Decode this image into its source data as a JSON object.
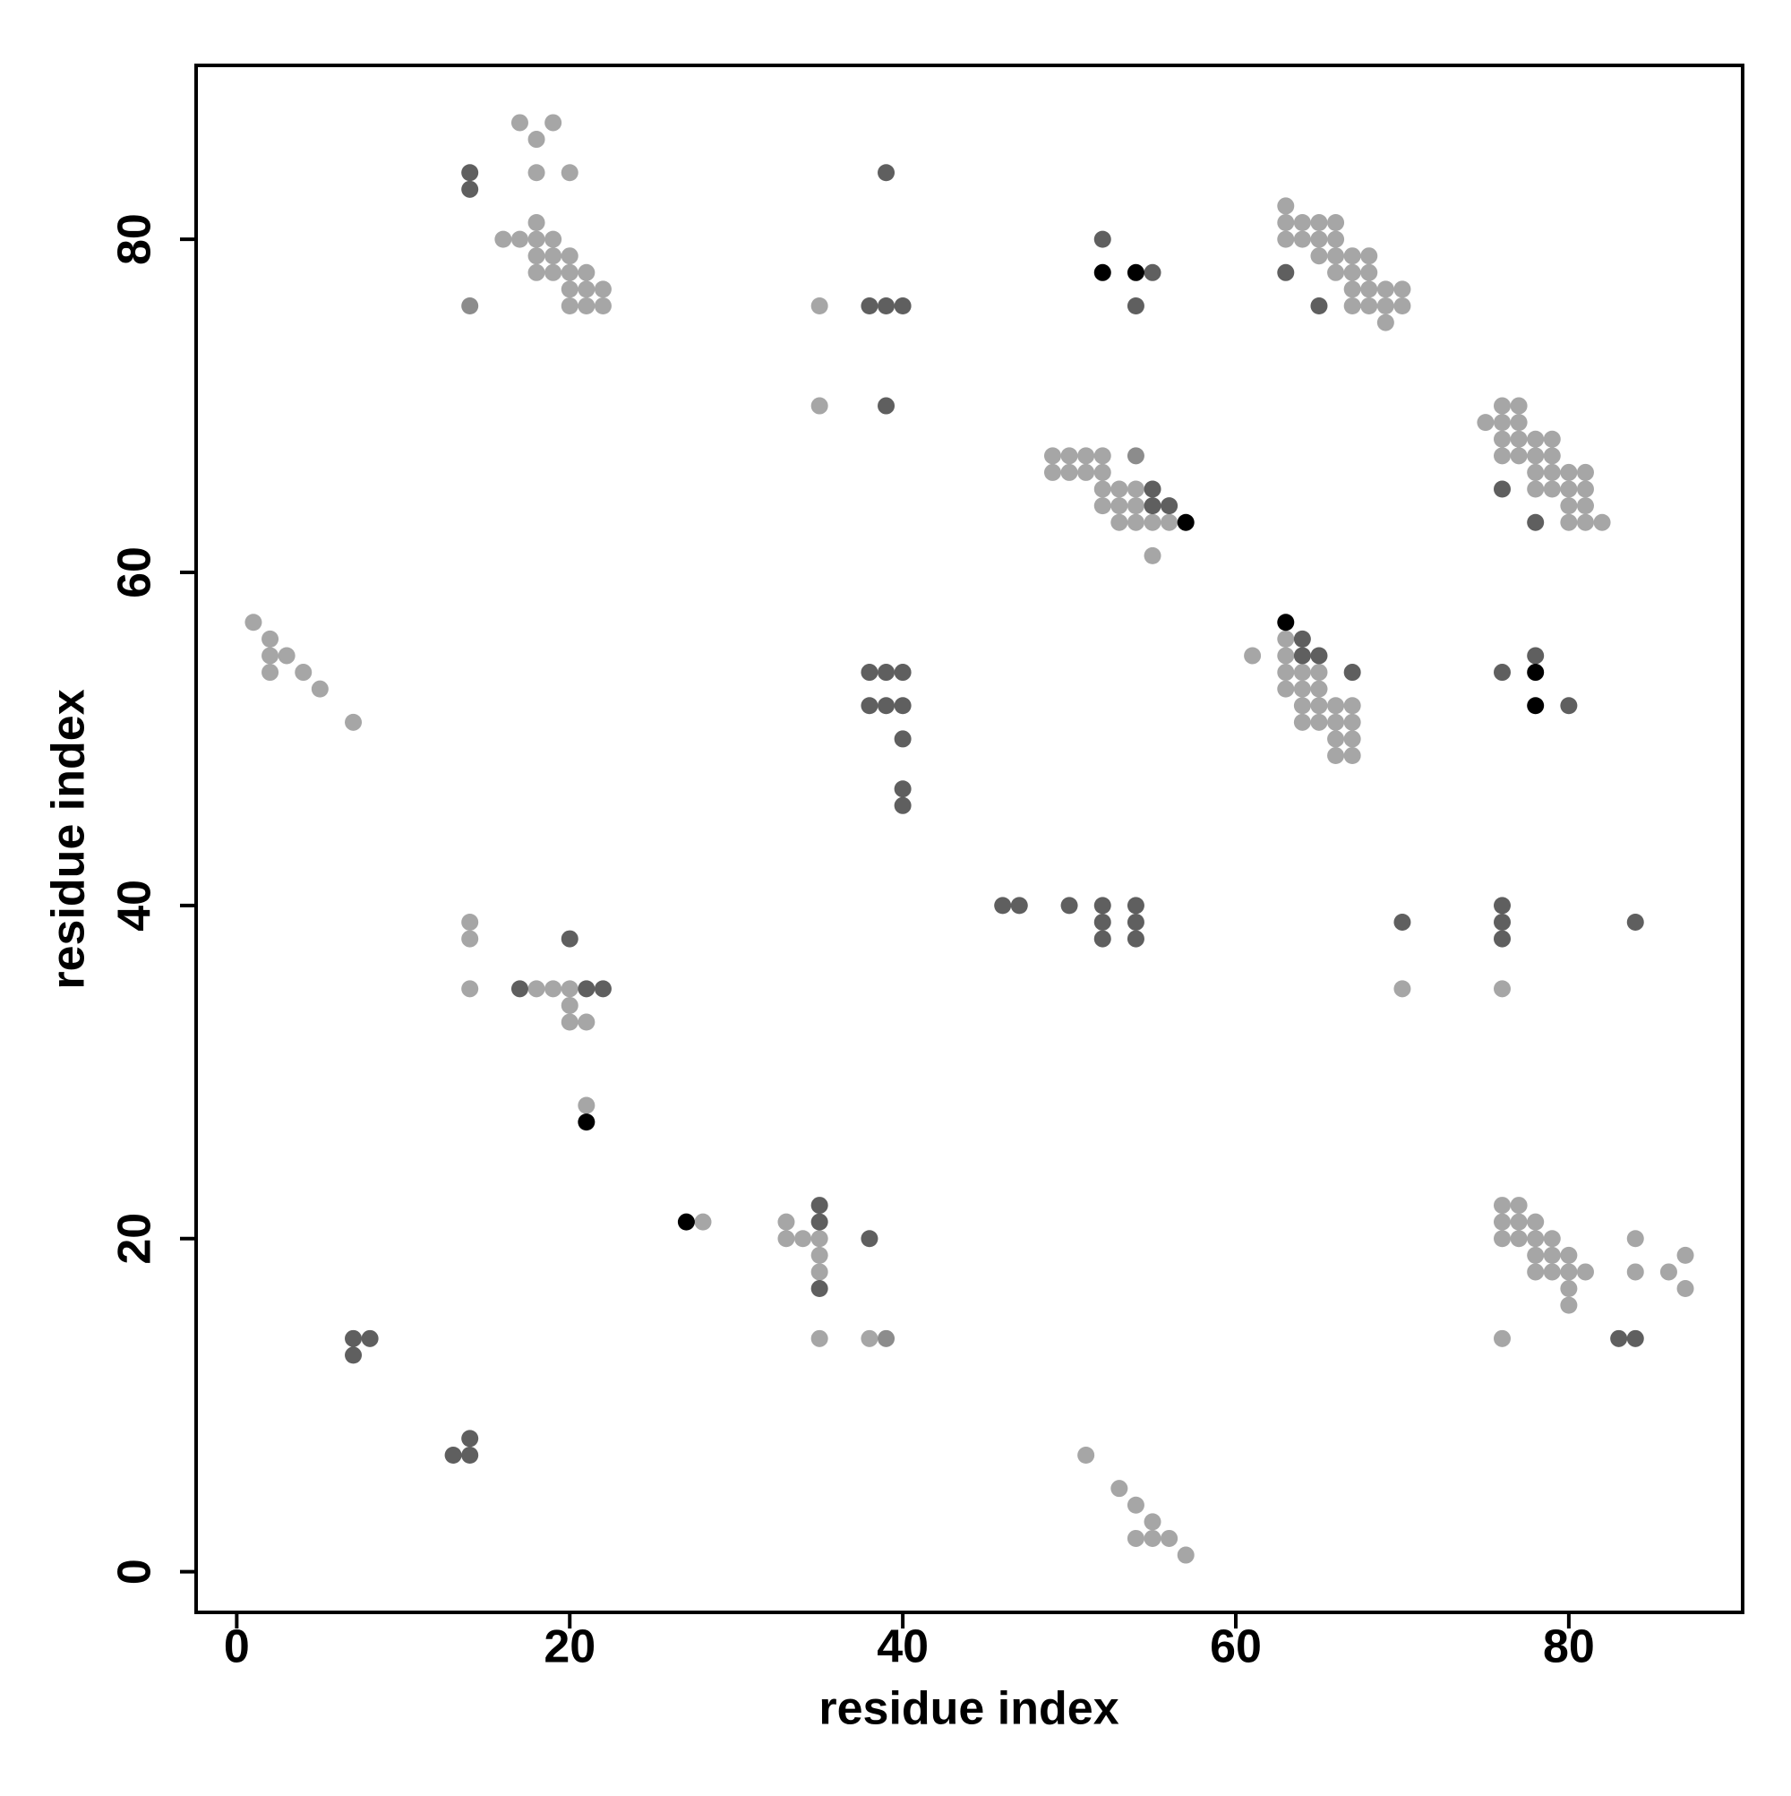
{
  "chart_data": {
    "type": "scatter",
    "x_label": "residue index",
    "y_label": "residue index",
    "xlim": [
      -2.44,
      90.44
    ],
    "ylim": [
      -2.44,
      90.44
    ],
    "xticks": [
      0,
      20,
      40,
      60,
      80
    ],
    "yticks": [
      0,
      20,
      40,
      60,
      80
    ],
    "grid": false,
    "series": [
      {
        "color": "#a6a6a6",
        "x": [
          17,
          19,
          18,
          18,
          20,
          18,
          16,
          17,
          18,
          19,
          18,
          19,
          20,
          18,
          19,
          20,
          21,
          20,
          21,
          22,
          20,
          21,
          22,
          35,
          35,
          63,
          63,
          64,
          65,
          66,
          63,
          64,
          65,
          66,
          65,
          66,
          67,
          68,
          66,
          67,
          68,
          67,
          68,
          69,
          70,
          67,
          68,
          69,
          70,
          69,
          49,
          50,
          51,
          52,
          49,
          50,
          51,
          52,
          52,
          53,
          54,
          52,
          53,
          54,
          53,
          54,
          55,
          56,
          55,
          75,
          76,
          77,
          76,
          77,
          76,
          77,
          78,
          79,
          76,
          77,
          78,
          79,
          78,
          79,
          80,
          81,
          78,
          79,
          80,
          81,
          80,
          81,
          80,
          81,
          82,
          1,
          2,
          2,
          3,
          2,
          4,
          5,
          7,
          61,
          63,
          63,
          63,
          64,
          65,
          63,
          64,
          65,
          64,
          65,
          66,
          67,
          64,
          65,
          66,
          67,
          66,
          67,
          66,
          67,
          70,
          76,
          14,
          14,
          14,
          18,
          19,
          20,
          20,
          20,
          21,
          21,
          28,
          33,
          33,
          34,
          35,
          35,
          35,
          35,
          38,
          51,
          53,
          54,
          55,
          54,
          55,
          56,
          57,
          76,
          77,
          76,
          77,
          78,
          76,
          77,
          78,
          79,
          78,
          79,
          80,
          78,
          79,
          80,
          81,
          80,
          80,
          76,
          84,
          84,
          86,
          87,
          87
        ],
        "y": [
          87,
          87,
          86,
          84,
          84,
          81,
          80,
          80,
          80,
          80,
          79,
          79,
          79,
          78,
          78,
          78,
          78,
          77,
          77,
          77,
          76,
          76,
          76,
          76,
          70,
          82,
          81,
          81,
          81,
          81,
          80,
          80,
          80,
          80,
          79,
          79,
          79,
          79,
          78,
          78,
          78,
          77,
          77,
          77,
          77,
          76,
          76,
          76,
          76,
          75,
          67,
          67,
          67,
          67,
          66,
          66,
          66,
          66,
          65,
          65,
          65,
          64,
          64,
          64,
          63,
          63,
          63,
          63,
          61,
          69,
          70,
          70,
          69,
          69,
          68,
          68,
          68,
          68,
          67,
          67,
          67,
          67,
          66,
          66,
          66,
          66,
          65,
          65,
          65,
          65,
          64,
          64,
          63,
          63,
          63,
          57,
          56,
          55,
          55,
          54,
          54,
          53,
          51,
          55,
          56,
          55,
          54,
          54,
          54,
          53,
          53,
          53,
          52,
          52,
          52,
          52,
          51,
          51,
          51,
          51,
          50,
          50,
          49,
          49,
          35,
          35,
          39,
          38,
          35,
          35,
          35,
          35,
          34,
          33,
          33,
          28,
          21,
          21,
          20,
          20,
          20,
          19,
          18,
          14,
          14,
          7,
          5,
          4,
          3,
          2,
          2,
          2,
          1,
          22,
          22,
          21,
          21,
          21,
          20,
          20,
          20,
          20,
          19,
          19,
          19,
          18,
          18,
          18,
          18,
          17,
          16,
          14,
          20,
          18,
          18,
          19,
          17
        ]
      },
      {
        "color": "#8c8c8c",
        "x": [
          14,
          39,
          54
        ],
        "y": [
          76,
          14,
          67
        ]
      },
      {
        "color": "#5f5f5f",
        "x": [
          14,
          14,
          39,
          38,
          39,
          40,
          39,
          52,
          55,
          54,
          63,
          65,
          55,
          55,
          56,
          76,
          78,
          38,
          39,
          40,
          38,
          39,
          40,
          40,
          40,
          40,
          64,
          64,
          65,
          67,
          76,
          78,
          80,
          46,
          47,
          50,
          52,
          52,
          52,
          54,
          54,
          54,
          70,
          76,
          76,
          76,
          84,
          17,
          21,
          22,
          20,
          35,
          35,
          35,
          38,
          7,
          8,
          7,
          13,
          14,
          14,
          83,
          84
        ],
        "y": [
          84,
          83,
          84,
          76,
          76,
          76,
          70,
          80,
          78,
          76,
          78,
          76,
          65,
          64,
          64,
          65,
          63,
          54,
          54,
          54,
          52,
          52,
          52,
          50,
          47,
          46,
          56,
          55,
          55,
          54,
          54,
          55,
          52,
          40,
          40,
          40,
          40,
          39,
          38,
          40,
          39,
          38,
          39,
          40,
          39,
          38,
          39,
          35,
          35,
          35,
          38,
          22,
          21,
          17,
          20,
          14,
          14,
          13,
          7,
          7,
          8,
          14,
          14
        ]
      },
      {
        "color": "#000000",
        "x": [
          52,
          54,
          57,
          63,
          78,
          78,
          21,
          27
        ],
        "y": [
          78,
          78,
          63,
          57,
          54,
          52,
          27,
          21
        ]
      }
    ]
  }
}
